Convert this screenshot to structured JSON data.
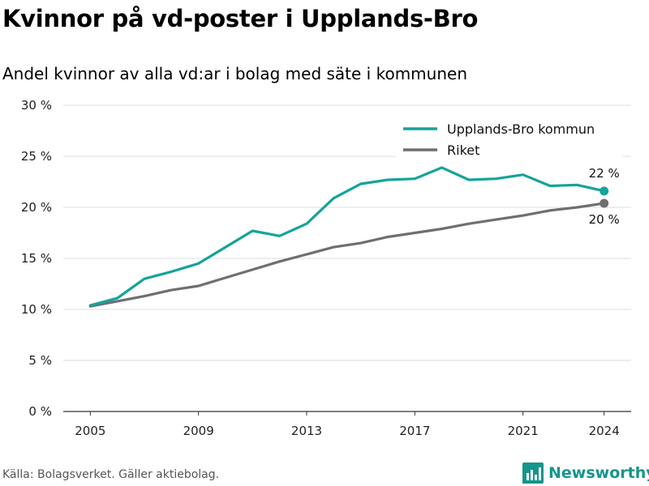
{
  "title": "Kvinnor på vd-poster i Upplands-Bro",
  "subtitle": "Andel kvinnor av alla vd:ar i bolag med säte i kommunen",
  "source": "Källa: Bolagsverket. Gäller aktiebolag.",
  "brand": "Newsworthy",
  "colors": {
    "kommun": "#15a39a",
    "riket": "#6f6e73",
    "grid": "#dddddd",
    "brand": "#15958c"
  },
  "chart_data": {
    "type": "line",
    "x": [
      2005,
      2006,
      2007,
      2008,
      2009,
      2010,
      2011,
      2012,
      2013,
      2014,
      2015,
      2016,
      2017,
      2018,
      2019,
      2020,
      2021,
      2022,
      2023,
      2024
    ],
    "series": [
      {
        "name": "Upplands-Bro kommun",
        "color": "#15a39a",
        "values": [
          10.4,
          11.1,
          13.0,
          13.7,
          14.5,
          16.1,
          17.7,
          17.2,
          18.4,
          20.9,
          22.3,
          22.7,
          22.8,
          23.9,
          22.7,
          22.8,
          23.2,
          22.1,
          22.2,
          21.6
        ],
        "end_label": "22 %"
      },
      {
        "name": "Riket",
        "color": "#6f6e73",
        "values": [
          10.3,
          10.8,
          11.3,
          11.9,
          12.3,
          13.1,
          13.9,
          14.7,
          15.4,
          16.1,
          16.5,
          17.1,
          17.5,
          17.9,
          18.4,
          18.8,
          19.2,
          19.7,
          20.0,
          20.4
        ],
        "end_label": "20 %"
      }
    ],
    "x_ticks": [
      "2005",
      "2009",
      "2013",
      "2017",
      "2021",
      "2024"
    ],
    "y_ticks": [
      "0 %",
      "5 %",
      "10 %",
      "15 %",
      "20 %",
      "25 %",
      "30 %"
    ],
    "ylim": [
      0,
      30
    ],
    "xlim": [
      2004,
      2025
    ],
    "grid": "horizontal",
    "legend_position": "top-right"
  }
}
